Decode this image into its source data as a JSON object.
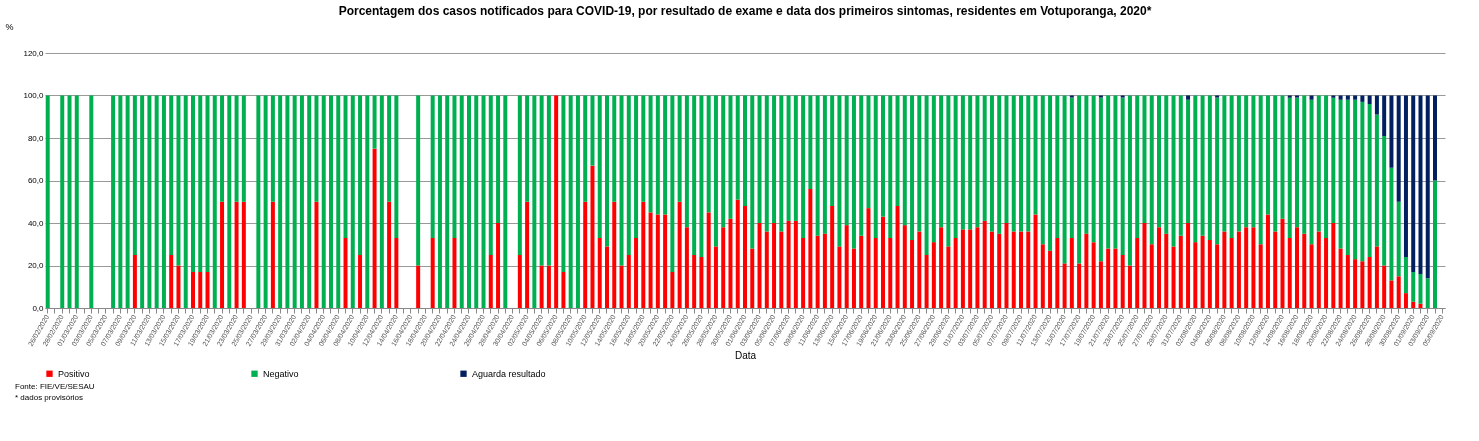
{
  "chart_data": {
    "type": "bar",
    "stacked": true,
    "title": "Porcentagem  dos casos notificados para COVID-19, por resultado de exame e data dos primeiros sintomas, residentes em Votuporanga, 2020*",
    "ylabel": "%",
    "xlabel": "Data",
    "annotations": [
      "Fonte: FIE/VE/SESAU",
      "* dados provisórios"
    ],
    "categories": [
      "26/02/2020",
      null,
      "28/02/2020",
      null,
      "01/03/2020",
      null,
      "03/03/2020",
      null,
      "05/03/2020",
      null,
      "07/03/2020",
      null,
      "09/03/2020",
      null,
      "11/03/2020",
      null,
      "13/03/2020",
      null,
      "15/03/2020",
      null,
      "17/03/2020",
      null,
      "19/03/2020",
      null,
      "21/03/2020",
      null,
      "23/03/2020",
      null,
      "25/03/2020",
      null,
      "27/03/2020",
      null,
      "29/03/2020",
      null,
      "31/03/2020",
      null,
      "02/04/2020",
      null,
      "04/04/2020",
      null,
      "06/04/2020",
      null,
      "08/04/2020",
      null,
      "10/04/2020",
      null,
      "12/04/2020",
      null,
      "14/04/2020",
      null,
      "16/04/2020",
      null,
      "18/04/2020",
      null,
      "20/04/2020",
      null,
      "22/04/2020",
      null,
      "24/04/2020",
      null,
      "26/04/2020",
      null,
      "28/04/2020",
      null,
      "30/04/2020",
      null,
      "02/05/2020",
      null,
      "04/05/2020",
      null,
      "06/05/2020",
      null,
      "08/05/2020",
      null,
      "10/05/2020",
      null,
      "12/05/2020",
      null,
      "14/05/2020",
      null,
      "16/05/2020",
      null,
      "18/05/2020",
      null,
      "20/05/2020",
      null,
      "22/05/2020",
      null,
      "24/05/2020",
      null,
      "26/05/2020",
      null,
      "28/05/2020",
      null,
      "30/05/2020",
      null,
      "01/06/2020",
      null,
      "03/06/2020",
      null,
      "05/06/2020",
      null,
      "07/06/2020",
      null,
      "09/06/2020",
      null,
      "11/06/2020",
      null,
      "13/06/2020",
      null,
      "15/06/2020",
      null,
      "17/06/2020",
      null,
      "19/06/2020",
      null,
      "21/06/2020",
      null,
      "23/06/2020",
      null,
      "25/06/2020",
      null,
      "27/06/2020",
      null,
      "29/06/2020",
      null,
      "01/07/2020",
      null,
      "03/07/2020",
      null,
      "05/07/2020",
      null,
      "07/07/2020",
      null,
      "09/07/2020",
      null,
      "11/07/2020",
      null,
      "13/07/2020",
      null,
      "15/07/2020",
      null,
      "17/07/2020",
      null,
      "19/07/2020",
      null,
      "21/07/2020",
      null,
      "23/07/2020",
      null,
      "25/07/2020",
      null,
      "27/07/2020",
      null,
      "29/07/2020",
      null,
      "31/07/2020",
      null,
      "02/08/2020",
      null,
      "04/08/2020",
      null,
      "06/08/2020",
      null,
      "08/08/2020",
      null,
      "10/08/2020",
      null,
      "12/08/2020",
      null,
      "14/08/2020",
      null,
      "16/08/2020",
      null,
      "18/08/2020",
      null,
      "20/08/2020",
      null,
      "22/08/2020",
      null,
      "24/08/2020",
      null,
      "26/08/2020",
      null,
      "28/08/2020",
      null,
      "30/08/2020",
      null,
      "01/09/2020",
      null,
      "03/09/2020",
      null,
      "05/09/2020"
    ],
    "series": [
      {
        "name": "Positivo",
        "color": "#ff0000",
        "values": [
          null,
          null,
          null,
          null,
          null,
          null,
          null,
          null,
          null,
          null,
          null,
          null,
          25,
          null,
          null,
          null,
          null,
          25,
          20,
          null,
          17,
          17,
          17,
          null,
          50,
          null,
          50,
          50,
          null,
          null,
          null,
          50,
          null,
          null,
          null,
          null,
          null,
          50,
          null,
          null,
          null,
          33,
          null,
          25,
          null,
          75,
          null,
          50,
          33,
          null,
          null,
          20,
          null,
          33,
          null,
          null,
          33,
          null,
          null,
          null,
          null,
          25,
          40,
          null,
          null,
          25,
          50,
          null,
          20,
          20,
          100,
          17,
          null,
          null,
          50,
          67,
          33,
          29,
          50,
          20,
          25,
          33,
          50,
          45,
          44,
          44,
          17,
          50,
          38,
          25,
          24,
          45,
          29,
          38,
          42,
          51,
          48,
          28,
          40,
          36,
          40,
          36,
          41,
          41,
          33,
          56,
          34,
          35,
          48,
          29,
          39,
          28,
          34,
          47,
          33,
          43,
          33,
          48,
          39,
          32,
          36,
          25,
          31,
          38,
          29,
          33,
          37,
          37,
          38,
          41,
          36,
          35,
          40,
          36,
          36,
          36,
          44,
          30,
          27,
          33,
          21,
          33,
          21,
          35,
          31,
          22,
          28,
          28,
          25,
          20,
          33,
          40,
          30,
          38,
          35,
          29,
          34,
          40,
          31,
          34,
          32,
          30,
          36,
          33,
          36,
          38,
          38,
          30,
          44,
          36,
          42,
          33,
          38,
          35,
          30,
          36,
          33,
          40,
          28,
          25,
          23,
          22,
          24,
          29,
          20,
          13,
          15,
          7,
          3,
          2,
          null,
          null,
          null
        ]
      },
      {
        "name": "Negativo",
        "color": "#00b050",
        "values": [
          100,
          null,
          100,
          100,
          100,
          null,
          100,
          null,
          null,
          100,
          100,
          100,
          75,
          100,
          100,
          100,
          100,
          75,
          80,
          100,
          83,
          83,
          83,
          100,
          50,
          100,
          50,
          50,
          null,
          100,
          100,
          50,
          100,
          100,
          100,
          100,
          100,
          50,
          100,
          100,
          100,
          67,
          100,
          75,
          100,
          25,
          100,
          50,
          67,
          null,
          null,
          80,
          null,
          67,
          100,
          100,
          67,
          100,
          100,
          100,
          100,
          75,
          60,
          100,
          null,
          75,
          50,
          100,
          80,
          80,
          null,
          83,
          100,
          100,
          50,
          33,
          67,
          71,
          50,
          80,
          75,
          67,
          50,
          55,
          56,
          56,
          83,
          50,
          62,
          75,
          76,
          55,
          71,
          62,
          58,
          49,
          52,
          72,
          60,
          64,
          60,
          64,
          59,
          59,
          67,
          44,
          66,
          65,
          52,
          71,
          61,
          72,
          66,
          53,
          67,
          57,
          67,
          52,
          61,
          68,
          64,
          75,
          69,
          62,
          71,
          67,
          63,
          63,
          62,
          59,
          64,
          65,
          60,
          64,
          64,
          64,
          56,
          70,
          73,
          67,
          79,
          66,
          79,
          65,
          69,
          77,
          72,
          72,
          74,
          80,
          67,
          60,
          70,
          62,
          65,
          71,
          66,
          58,
          69,
          66,
          68,
          69,
          64,
          67,
          64,
          62,
          62,
          70,
          56,
          64,
          58,
          66,
          61,
          65,
          68,
          64,
          67,
          59,
          70,
          73,
          75,
          75,
          72,
          62,
          61,
          53,
          35,
          17,
          14,
          14,
          14,
          60,
          null
        ]
      },
      {
        "name": "Aguarda resultado",
        "color": "#002060",
        "values": [
          null,
          null,
          null,
          null,
          null,
          null,
          null,
          null,
          null,
          null,
          null,
          null,
          null,
          null,
          null,
          null,
          null,
          null,
          null,
          null,
          null,
          null,
          null,
          null,
          null,
          null,
          null,
          null,
          null,
          null,
          null,
          null,
          null,
          null,
          null,
          null,
          null,
          null,
          null,
          null,
          null,
          null,
          null,
          null,
          null,
          null,
          null,
          null,
          null,
          null,
          null,
          null,
          null,
          null,
          null,
          null,
          null,
          null,
          null,
          null,
          null,
          null,
          null,
          null,
          null,
          null,
          null,
          null,
          null,
          null,
          null,
          null,
          null,
          null,
          null,
          null,
          null,
          null,
          null,
          null,
          null,
          null,
          null,
          null,
          null,
          null,
          null,
          null,
          null,
          null,
          null,
          null,
          null,
          null,
          null,
          null,
          null,
          null,
          null,
          null,
          null,
          null,
          null,
          null,
          null,
          null,
          null,
          null,
          null,
          null,
          null,
          null,
          null,
          null,
          null,
          null,
          null,
          null,
          null,
          null,
          null,
          null,
          null,
          null,
          null,
          null,
          null,
          null,
          null,
          null,
          null,
          null,
          null,
          null,
          null,
          null,
          null,
          null,
          null,
          null,
          null,
          1,
          null,
          null,
          null,
          1,
          null,
          null,
          1,
          null,
          null,
          null,
          null,
          null,
          null,
          null,
          null,
          2,
          null,
          null,
          null,
          1,
          null,
          null,
          null,
          null,
          null,
          null,
          null,
          null,
          null,
          1,
          1,
          null,
          2,
          null,
          null,
          1,
          2,
          2,
          2,
          3,
          4,
          9,
          19,
          34,
          50,
          76,
          83,
          84,
          86,
          40,
          null
        ]
      }
    ],
    "ylim": [
      0,
      120
    ],
    "yticks": [
      {
        "value": 0,
        "label": "0,0"
      },
      {
        "value": 20,
        "label": "20,0"
      },
      {
        "value": 40,
        "label": "40,0"
      },
      {
        "value": 60,
        "label": "60,0"
      },
      {
        "value": 80,
        "label": "80,0"
      },
      {
        "value": 100,
        "label": "100,0"
      },
      {
        "value": 120,
        "label": "120,0"
      }
    ],
    "grid": "y",
    "legend": "bottom"
  }
}
